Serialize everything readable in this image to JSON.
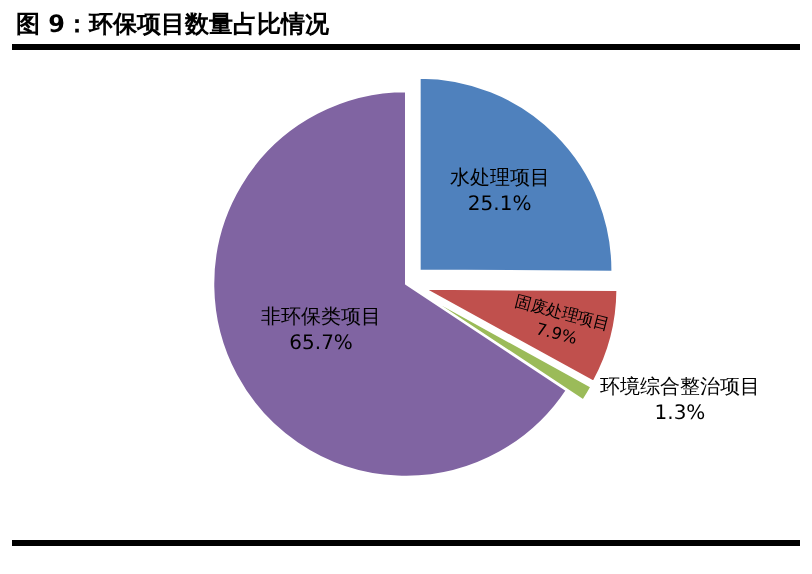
{
  "chart_data": {
    "type": "pie",
    "title": "图 9：环保项目数量占比情况",
    "categories": [
      "水处理项目",
      "固废处理项目",
      "环境综合整治项目",
      "非环保类项目"
    ],
    "values": [
      25.1,
      7.9,
      1.3,
      65.7
    ],
    "colors": [
      "#4f81bd",
      "#c0504d",
      "#9bbb59",
      "#8064a2"
    ],
    "value_labels": [
      "25.1%",
      "7.9%",
      "1.3%",
      "65.7%"
    ],
    "legend": false
  }
}
